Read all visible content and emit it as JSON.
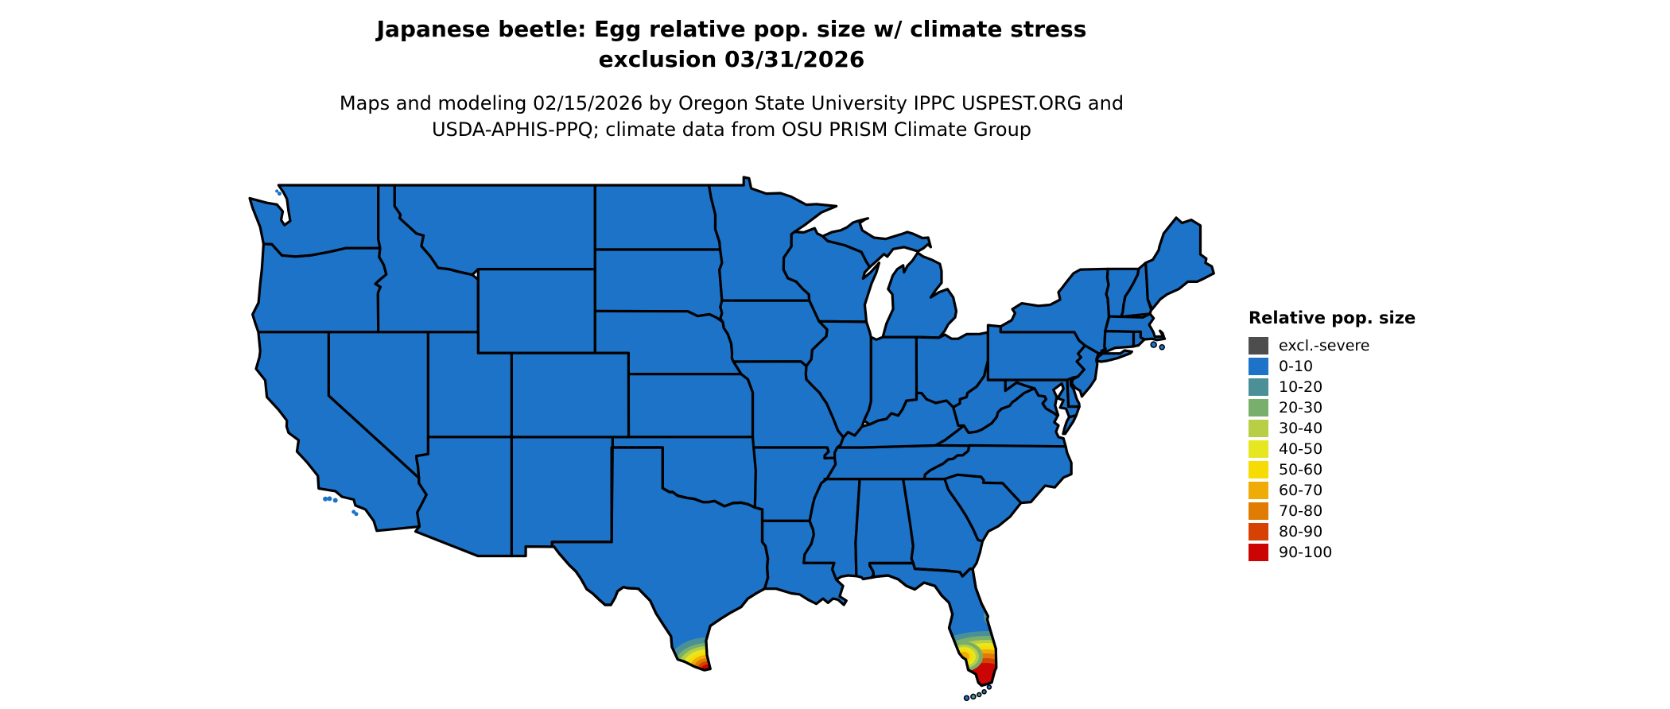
{
  "title": {
    "line1": "Japanese beetle: Egg relative pop. size w/ climate stress",
    "line2": "exclusion 03/31/2026"
  },
  "subtitle": {
    "line1": "Maps and modeling 02/15/2026 by Oregon State University IPPC USPEST.ORG and",
    "line2": "USDA-APHIS-PPQ; climate data from OSU PRISM Climate Group"
  },
  "legend": {
    "title": "Relative pop. size",
    "items": [
      {
        "label": "excl.-severe",
        "color": "#4d4d4d"
      },
      {
        "label": "0-10",
        "color": "#1c73c8"
      },
      {
        "label": "10-20",
        "color": "#4a9096"
      },
      {
        "label": "20-30",
        "color": "#79af6c"
      },
      {
        "label": "30-40",
        "color": "#b8ce44"
      },
      {
        "label": "40-50",
        "color": "#e6e621"
      },
      {
        "label": "50-60",
        "color": "#f7db04"
      },
      {
        "label": "60-70",
        "color": "#efac07"
      },
      {
        "label": "70-80",
        "color": "#e07c04"
      },
      {
        "label": "80-90",
        "color": "#d64104"
      },
      {
        "label": "90-100",
        "color": "#cb0404"
      }
    ]
  },
  "map": {
    "background": "#ffffff",
    "border_color": "#000000",
    "base_fill_class": "0-10"
  },
  "map_data": {
    "type": "choropleth-raster",
    "region": "contiguous United States with state borders, unprojected lon/lat",
    "value_name": "Relative pop. size",
    "classes": [
      "excl.-severe",
      "0-10",
      "10-20",
      "20-30",
      "30-40",
      "40-50",
      "50-60",
      "60-70",
      "70-80",
      "80-90",
      "90-100"
    ],
    "base_class": "0-10",
    "hotspots": [
      {
        "region": "southern tip of Texas (Brownsville / lower Rio Grande)",
        "pattern": "small concentric gradient 10-20 through 90-100, peak 90-100 at the tip"
      },
      {
        "region": "south Florida peninsula (south of ~27.5N to Everglades tip)",
        "pattern": "broad gradient 10-20 through 90-100, strongest 90-100 along the southeast tip"
      },
      {
        "region": "southwest Florida coast (Fort Myers area)",
        "pattern": "small patch 20-30 through 60-70"
      },
      {
        "region": "east-central Florida coast (Cape Canaveral area)",
        "pattern": "small 10-20 patch"
      },
      {
        "region": "Florida Keys",
        "pattern": "0-10 and 10-20 island specks"
      }
    ],
    "excluded_severe_area_visible": false
  }
}
